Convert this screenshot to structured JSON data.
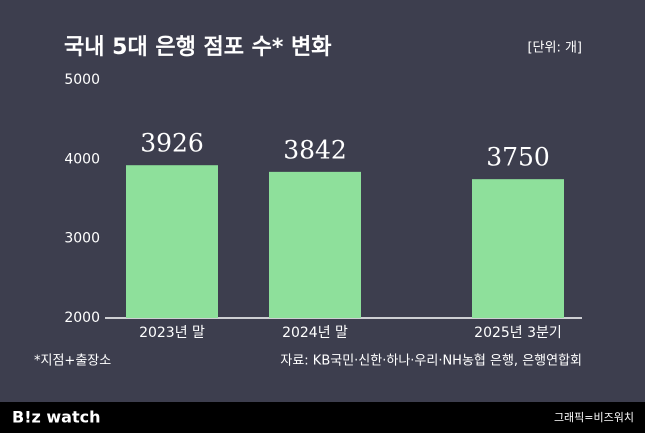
{
  "chart_data": {
    "type": "bar",
    "title": "국내 5대 은행 점포 수* 변화",
    "unit": "[단위: 개]",
    "categories": [
      "2023년 말",
      "2024년 말",
      "2025년 3분기"
    ],
    "values": [
      3926,
      3842,
      3750
    ],
    "color": "#8ee09b",
    "ylim": [
      2000,
      5000
    ],
    "yticks": [
      2000,
      3000,
      4000,
      5000
    ],
    "grid": false,
    "footnote": "*지점+출장소",
    "source": "자료: KB국민·신한·하나·우리·NH농협 은행, 은행연합회"
  },
  "footer": {
    "brand": "B!z watch",
    "credit": "그래픽=비즈워치"
  }
}
